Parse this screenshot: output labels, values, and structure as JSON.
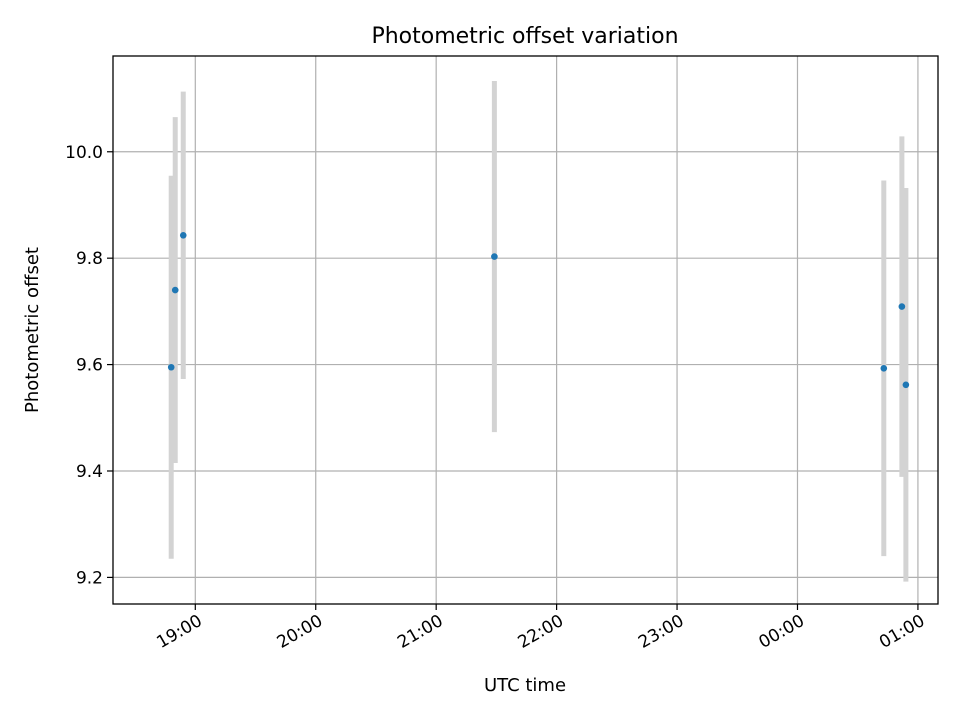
{
  "chart_data": {
    "type": "scatter",
    "title": "Photometric offset variation",
    "xlabel": "UTC time",
    "ylabel": "Photometric offset",
    "x_tick_labels": [
      "19:00",
      "20:00",
      "21:00",
      "22:00",
      "23:00",
      "00:00",
      "01:00"
    ],
    "y_tick_labels": [
      "9.2",
      "9.4",
      "9.6",
      "9.8",
      "10.0"
    ],
    "y_ticks": [
      9.2,
      9.4,
      9.6,
      9.8,
      10.0
    ],
    "xlim": [
      "18:19",
      "01:10"
    ],
    "ylim": [
      9.15,
      10.18
    ],
    "grid": true,
    "point_color": "#1f77b4",
    "errorbar_color": "#d3d3d3",
    "points": [
      {
        "x": "18:48",
        "y": 9.595,
        "yerr": 0.36
      },
      {
        "x": "18:50",
        "y": 9.74,
        "yerr": 0.325
      },
      {
        "x": "18:54",
        "y": 9.843,
        "yerr": 0.27
      },
      {
        "x": "21:29",
        "y": 9.803,
        "yerr": 0.33
      },
      {
        "x": "00:43",
        "y": 9.593,
        "yerr": 0.353
      },
      {
        "x": "00:52",
        "y": 9.709,
        "yerr": 0.32
      },
      {
        "x": "00:54",
        "y": 9.562,
        "yerr": 0.37
      }
    ]
  }
}
